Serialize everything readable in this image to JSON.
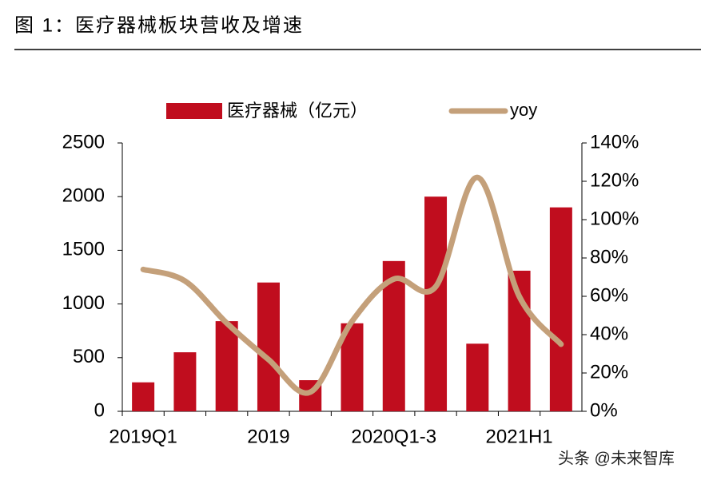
{
  "title": "图 1：医疗器械板块营收及增速",
  "watermark": "头条 @未来智库",
  "chart_data": {
    "type": "bar_line",
    "categories": [
      "2019Q1",
      null,
      null,
      "2019",
      null,
      null,
      "2020Q1-3",
      null,
      null,
      "2021H1",
      null
    ],
    "series": [
      {
        "name": "医疗器械（亿元）",
        "color": "#c00d1e",
        "type": "bar",
        "values": [
          270,
          550,
          840,
          1200,
          290,
          820,
          1400,
          2000,
          630,
          1310,
          1900
        ]
      },
      {
        "name": "yoy",
        "color": "#c4a07a",
        "type": "line",
        "axis": "y2",
        "values": [
          74,
          68,
          46,
          27,
          10,
          47,
          69,
          65,
          122,
          60,
          35
        ]
      }
    ],
    "ylim": [
      0,
      2500
    ],
    "yticks": [
      0,
      500,
      1000,
      1500,
      2000,
      2500
    ],
    "y2lim": [
      0,
      140
    ],
    "y2ticks": [
      {
        "value": 0,
        "label": "0%"
      },
      {
        "value": 20,
        "label": "20%"
      },
      {
        "value": 40,
        "label": "40%"
      },
      {
        "value": 60,
        "label": "60%"
      },
      {
        "value": 80,
        "label": "80%"
      },
      {
        "value": 100,
        "label": "100%"
      },
      {
        "value": 120,
        "label": "120%"
      },
      {
        "value": 140,
        "label": "140%"
      }
    ],
    "legend": "top"
  }
}
